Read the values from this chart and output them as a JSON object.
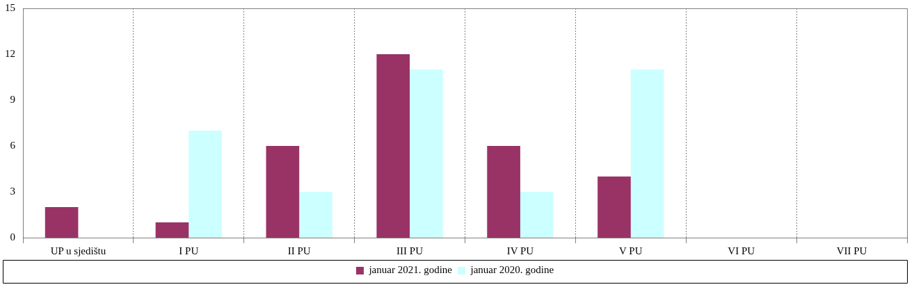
{
  "chart_data": {
    "type": "bar",
    "categories": [
      "UP u sjedištu",
      "I PU",
      "II PU",
      "III PU",
      "IV PU",
      "V PU",
      "VI PU",
      "VII PU"
    ],
    "series": [
      {
        "name": "januar 2021. godine",
        "color": "#993366",
        "values": [
          2,
          1,
          6,
          12,
          6,
          4,
          0,
          0
        ]
      },
      {
        "name": "januar 2020. godine",
        "color": "#ccffff",
        "values": [
          0,
          7,
          3,
          11,
          3,
          11,
          0,
          0
        ]
      }
    ],
    "ylim": [
      0,
      15
    ],
    "yticks": [
      0,
      3,
      6,
      9,
      12,
      15
    ],
    "grid": "x",
    "legend": "bottom"
  }
}
